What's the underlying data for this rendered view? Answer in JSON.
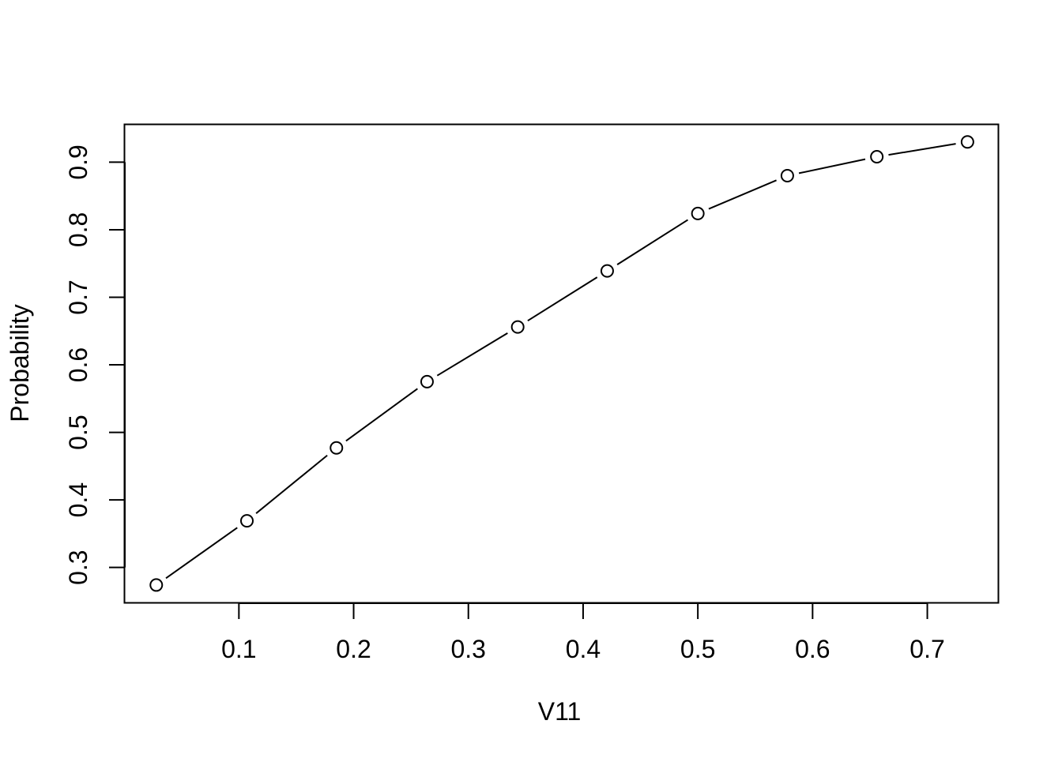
{
  "chart_data": {
    "type": "line",
    "markers": "open-circle",
    "title": "",
    "xlabel": "V11",
    "ylabel": "Probability",
    "xlim": [
      0.0006,
      0.7616
    ],
    "ylim": [
      0.2482,
      0.9554
    ],
    "xticks": [
      0.1,
      0.2,
      0.3,
      0.4,
      0.5,
      0.6,
      0.7
    ],
    "xtick_labels": [
      "0.1",
      "0.2",
      "0.3",
      "0.4",
      "0.5",
      "0.6",
      "0.7"
    ],
    "yticks": [
      0.3,
      0.4,
      0.5,
      0.6,
      0.7,
      0.8,
      0.9
    ],
    "ytick_labels": [
      "0.3",
      "0.4",
      "0.5",
      "0.6",
      "0.7",
      "0.8",
      "0.9"
    ],
    "grid": false,
    "legend": "none",
    "line_color": "#000000",
    "series": [
      {
        "x": [
          0.028,
          0.107,
          0.185,
          0.264,
          0.343,
          0.421,
          0.5,
          0.578,
          0.656,
          0.735
        ],
        "y": [
          0.274,
          0.369,
          0.477,
          0.575,
          0.656,
          0.739,
          0.824,
          0.88,
          0.908,
          0.93
        ]
      }
    ]
  }
}
